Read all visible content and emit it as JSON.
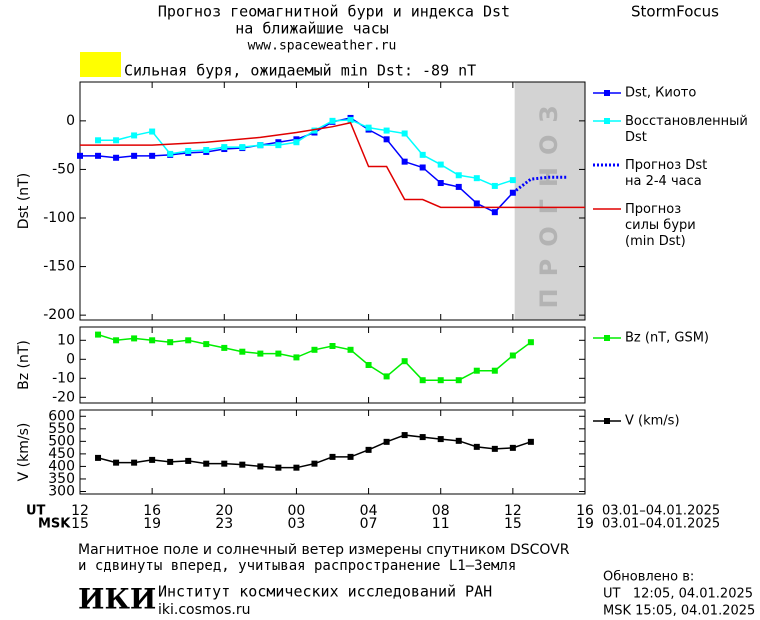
{
  "header": {
    "title": "Прогноз геомагнитной бури и индекса Dst",
    "subtitle": "на ближайшие часы",
    "url": "www.spaceweather.ru",
    "brand": "StormFocus"
  },
  "storm": {
    "color": "#ffff00",
    "text": "Сильная буря, ожидаемый min Dst: -89 nT"
  },
  "chart_data": [
    {
      "type": "line",
      "ylabel": "Dst (nT)",
      "xlim": [
        0,
        28
      ],
      "ylim": [
        -205,
        40
      ],
      "yticks": [
        0,
        -50,
        -100,
        -150,
        -200
      ],
      "forecast_region": {
        "from": 24.1,
        "to": 28,
        "color": "#d3d3d3",
        "label": "ПРОГНОЗ"
      },
      "legend": "right",
      "series": [
        {
          "name": "Dst, Киото",
          "color": "#0000ff",
          "marker": "square",
          "x": [
            0,
            1,
            2,
            3,
            4,
            5,
            6,
            7,
            8,
            9,
            10,
            11,
            12,
            13,
            14,
            15,
            16,
            17,
            18,
            19,
            20,
            21,
            22,
            23,
            24
          ],
          "values": [
            -36,
            -36,
            -38,
            -36,
            -36,
            -35,
            -33,
            -32,
            -29,
            -28,
            -25,
            -22,
            -19,
            -12,
            -1,
            3,
            -9,
            -19,
            -42,
            -48,
            -64,
            -68,
            -85,
            -94,
            -74
          ]
        },
        {
          "name": "Восстановленный\nDst",
          "color": "#00ffff",
          "marker": "square",
          "x": [
            0,
            1,
            2,
            3,
            4,
            5,
            6,
            7,
            8,
            9,
            10,
            11,
            12,
            13,
            14,
            15,
            16,
            17,
            18,
            19,
            20,
            21,
            22,
            23,
            24
          ],
          "values": [
            null,
            -20,
            -20,
            -15,
            -11,
            -34,
            -31,
            -30,
            -27,
            -27,
            -25,
            -25,
            -22,
            -10,
            0,
            1,
            -7,
            -10,
            -13,
            -35,
            -45,
            -56,
            -59,
            -67,
            -61
          ]
        },
        {
          "name": "Прогноз Dst\nна 2-4 часа",
          "color": "#0000ff",
          "style": "dotted",
          "x": [
            24,
            25,
            26,
            27
          ],
          "values": [
            -74,
            -60,
            -58,
            -58
          ]
        },
        {
          "name": "Прогноз\nсилы бури\n(min Dst)",
          "color": "#e00000",
          "x": [
            0,
            4,
            7,
            10,
            12,
            14,
            15,
            16,
            17,
            18,
            19,
            20,
            28
          ],
          "values": [
            -25,
            -25,
            -22,
            -17,
            -12,
            -6,
            -2,
            -47,
            -47,
            -81,
            -81,
            -89,
            -89
          ]
        }
      ]
    },
    {
      "type": "line",
      "ylabel": "Bz (nT)",
      "xlim": [
        0,
        28
      ],
      "ylim": [
        -23,
        17
      ],
      "yticks": [
        10,
        0,
        -10,
        -20
      ],
      "legend": "right",
      "series": [
        {
          "name": "Bz (nT, GSM)",
          "color": "#00ee00",
          "marker": "square",
          "x": [
            1,
            2,
            3,
            4,
            5,
            6,
            7,
            8,
            9,
            10,
            11,
            12,
            13,
            14,
            15,
            16,
            17,
            18,
            19,
            20,
            21,
            22,
            23,
            24,
            25
          ],
          "values": [
            13,
            10,
            11,
            10,
            9,
            10,
            8,
            6,
            4,
            3,
            3,
            1,
            5,
            7,
            5,
            -3,
            -9,
            -1,
            -11,
            -11,
            -11,
            -6,
            -6,
            2,
            9
          ]
        }
      ]
    },
    {
      "type": "line",
      "ylabel": "V (km/s)",
      "xlim": [
        0,
        28
      ],
      "ylim": [
        290,
        625
      ],
      "yticks": [
        600,
        550,
        500,
        450,
        400,
        350,
        300
      ],
      "legend": "right",
      "xlabel": "UT",
      "x2label": "MSK",
      "date_range": "03.01–04.01.2025",
      "date_range2": "03.01–04.01.2025",
      "xticks": [
        {
          "value": 0,
          "label": "12"
        },
        {
          "value": 4,
          "label": "16"
        },
        {
          "value": 8,
          "label": "20"
        },
        {
          "value": 12,
          "label": "00"
        },
        {
          "value": 16,
          "label": "04"
        },
        {
          "value": 20,
          "label": "08"
        },
        {
          "value": 24,
          "label": "12"
        },
        {
          "value": 28,
          "label": "16"
        }
      ],
      "xticks2": [
        {
          "value": 0,
          "label": "15"
        },
        {
          "value": 4,
          "label": "19"
        },
        {
          "value": 8,
          "label": "23"
        },
        {
          "value": 12,
          "label": "03"
        },
        {
          "value": 16,
          "label": "07"
        },
        {
          "value": 20,
          "label": "11"
        },
        {
          "value": 24,
          "label": "15"
        },
        {
          "value": 28,
          "label": "19"
        }
      ],
      "series": [
        {
          "name": "V (km/s)",
          "color": "#000000",
          "marker": "square",
          "x": [
            1,
            2,
            3,
            4,
            5,
            6,
            7,
            8,
            9,
            10,
            11,
            12,
            13,
            14,
            15,
            16,
            17,
            18,
            19,
            20,
            21,
            22,
            23,
            24,
            25
          ],
          "values": [
            434,
            415,
            415,
            426,
            418,
            422,
            411,
            411,
            407,
            400,
            395,
            395,
            411,
            438,
            438,
            466,
            498,
            525,
            517,
            509,
            502,
            478,
            470,
            474,
            498
          ]
        }
      ]
    }
  ],
  "footer": {
    "note1": "Магнитное поле и солнечный ветер измерены спутником DSCOVR",
    "note2": "и сдвинуты вперед, учитывая распространение L1–Земля",
    "logo": "ИКИ",
    "institute": "Институт космических исследований РАН",
    "site": "iki.cosmos.ru",
    "updated": "Обновлено в:",
    "updated_ut": "UT   12:05, 04.01.2025",
    "updated_msk": "MSK 15:05, 04.01.2025"
  }
}
